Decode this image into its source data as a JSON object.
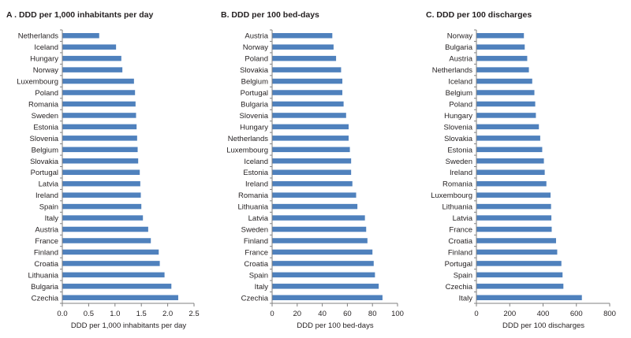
{
  "colors": {
    "bar": "#4f81bd",
    "axis": "#808080",
    "text": "#231f20"
  },
  "chart_data": [
    {
      "type": "bar",
      "orientation": "horizontal",
      "title": "A . DDD per 1,000 inhabitants per day",
      "xlabel": "DDD per 1,000 inhabitants per day",
      "ylabel": "",
      "xlim": [
        0,
        2.5
      ],
      "ticks": [
        "0.0",
        "0.5",
        "1.0",
        "1.5",
        "2.0",
        "2.5"
      ],
      "tick_values": [
        0,
        0.5,
        1.0,
        1.5,
        2.0,
        2.5
      ],
      "grid": false,
      "categories": [
        "Netherlands",
        "Iceland",
        "Hungary",
        "Norway",
        "Luxembourg",
        "Poland",
        "Romania",
        "Sweden",
        "Estonia",
        "Slovenia",
        "Belgium",
        "Slovakia",
        "Portugal",
        "Latvia",
        "Ireland",
        "Spain",
        "Italy",
        "Austria",
        "France",
        "Finland",
        "Croatia",
        "Lithuania",
        "Bulgaria",
        "Czechia"
      ],
      "values": [
        0.7,
        1.02,
        1.12,
        1.14,
        1.36,
        1.38,
        1.39,
        1.4,
        1.41,
        1.42,
        1.43,
        1.44,
        1.47,
        1.48,
        1.49,
        1.5,
        1.53,
        1.63,
        1.68,
        1.83,
        1.85,
        1.94,
        2.07,
        2.2
      ]
    },
    {
      "type": "bar",
      "orientation": "horizontal",
      "title": "B. DDD per 100 bed-days",
      "xlabel": "DDD  per 100 bed-days",
      "ylabel": "",
      "xlim": [
        0,
        100
      ],
      "ticks": [
        "0",
        "20",
        "40",
        "60",
        "80",
        "100"
      ],
      "tick_values": [
        0,
        20,
        40,
        60,
        80,
        100
      ],
      "grid": false,
      "categories": [
        "Austria",
        "Norway",
        "Poland",
        "Slovakia",
        "Belgium",
        "Portugal",
        "Bulgaria",
        "Slovenia",
        "Hungary",
        "Netherlands",
        "Luxembourg",
        "Iceland",
        "Estonia",
        "Ireland",
        "Romania",
        "Lithuania",
        "Latvia",
        "Sweden",
        "Finland",
        "France",
        "Croatia",
        "Spain",
        "Italy",
        "Czechia"
      ],
      "values": [
        48,
        49,
        51,
        55,
        56,
        56,
        57,
        59,
        61,
        61,
        62,
        63,
        63,
        64,
        67,
        68,
        74,
        75,
        76,
        80,
        81,
        82,
        85,
        88
      ]
    },
    {
      "type": "bar",
      "orientation": "horizontal",
      "title": "C. DDD per 100 discharges",
      "xlabel": "DDD  per 100 discharges",
      "ylabel": "",
      "xlim": [
        0,
        800
      ],
      "ticks": [
        "0",
        "200",
        "400",
        "600",
        "800"
      ],
      "tick_values": [
        0,
        200,
        400,
        600,
        800
      ],
      "grid": false,
      "categories": [
        "Norway",
        "Bulgaria",
        "Austria",
        "Netherlands",
        "Iceland",
        "Belgium",
        "Poland",
        "Hungary",
        "Slovenia",
        "Slovakia",
        "Estonia",
        "Sweden",
        "Ireland",
        "Romania",
        "Luxembourg",
        "Lithuania",
        "Latvia",
        "France",
        "Croatia",
        "Finland",
        "Portugal",
        "Spain",
        "Czechia",
        "Italy"
      ],
      "values": [
        285,
        290,
        305,
        315,
        335,
        348,
        353,
        357,
        375,
        383,
        395,
        405,
        410,
        420,
        445,
        448,
        450,
        452,
        478,
        485,
        510,
        517,
        522,
        633
      ]
    }
  ]
}
